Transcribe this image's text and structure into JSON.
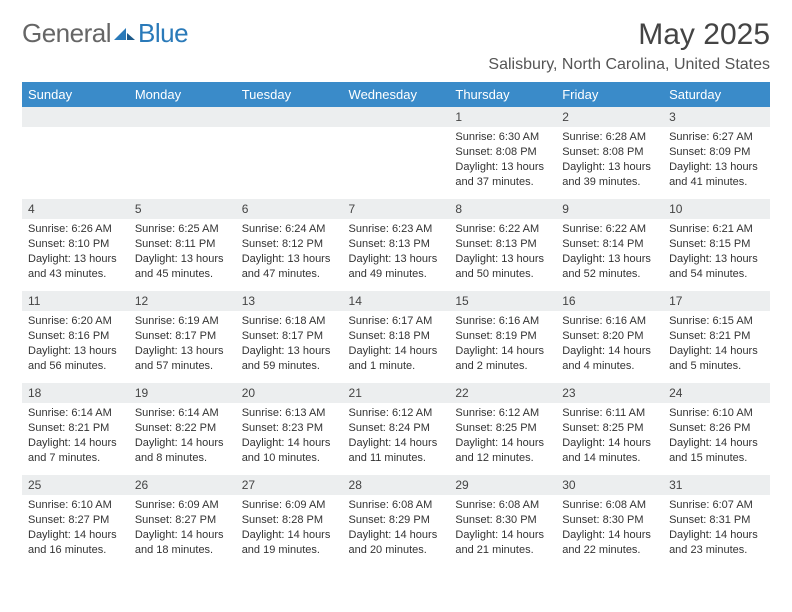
{
  "logo": {
    "text_gray": "General",
    "text_blue": "Blue"
  },
  "title": "May 2025",
  "location": "Salisbury, North Carolina, United States",
  "colors": {
    "header_bg": "#3a8bc9",
    "header_text": "#ffffff",
    "daynum_bg": "#eceeef",
    "body_text": "#333333",
    "logo_gray": "#666666",
    "logo_blue": "#2a7ab9"
  },
  "day_headers": [
    "Sunday",
    "Monday",
    "Tuesday",
    "Wednesday",
    "Thursday",
    "Friday",
    "Saturday"
  ],
  "first_weekday_index": 4,
  "days": [
    {
      "n": 1,
      "sunrise": "6:30 AM",
      "sunset": "8:08 PM",
      "daylight": "13 hours and 37 minutes."
    },
    {
      "n": 2,
      "sunrise": "6:28 AM",
      "sunset": "8:08 PM",
      "daylight": "13 hours and 39 minutes."
    },
    {
      "n": 3,
      "sunrise": "6:27 AM",
      "sunset": "8:09 PM",
      "daylight": "13 hours and 41 minutes."
    },
    {
      "n": 4,
      "sunrise": "6:26 AM",
      "sunset": "8:10 PM",
      "daylight": "13 hours and 43 minutes."
    },
    {
      "n": 5,
      "sunrise": "6:25 AM",
      "sunset": "8:11 PM",
      "daylight": "13 hours and 45 minutes."
    },
    {
      "n": 6,
      "sunrise": "6:24 AM",
      "sunset": "8:12 PM",
      "daylight": "13 hours and 47 minutes."
    },
    {
      "n": 7,
      "sunrise": "6:23 AM",
      "sunset": "8:13 PM",
      "daylight": "13 hours and 49 minutes."
    },
    {
      "n": 8,
      "sunrise": "6:22 AM",
      "sunset": "8:13 PM",
      "daylight": "13 hours and 50 minutes."
    },
    {
      "n": 9,
      "sunrise": "6:22 AM",
      "sunset": "8:14 PM",
      "daylight": "13 hours and 52 minutes."
    },
    {
      "n": 10,
      "sunrise": "6:21 AM",
      "sunset": "8:15 PM",
      "daylight": "13 hours and 54 minutes."
    },
    {
      "n": 11,
      "sunrise": "6:20 AM",
      "sunset": "8:16 PM",
      "daylight": "13 hours and 56 minutes."
    },
    {
      "n": 12,
      "sunrise": "6:19 AM",
      "sunset": "8:17 PM",
      "daylight": "13 hours and 57 minutes."
    },
    {
      "n": 13,
      "sunrise": "6:18 AM",
      "sunset": "8:17 PM",
      "daylight": "13 hours and 59 minutes."
    },
    {
      "n": 14,
      "sunrise": "6:17 AM",
      "sunset": "8:18 PM",
      "daylight": "14 hours and 1 minute."
    },
    {
      "n": 15,
      "sunrise": "6:16 AM",
      "sunset": "8:19 PM",
      "daylight": "14 hours and 2 minutes."
    },
    {
      "n": 16,
      "sunrise": "6:16 AM",
      "sunset": "8:20 PM",
      "daylight": "14 hours and 4 minutes."
    },
    {
      "n": 17,
      "sunrise": "6:15 AM",
      "sunset": "8:21 PM",
      "daylight": "14 hours and 5 minutes."
    },
    {
      "n": 18,
      "sunrise": "6:14 AM",
      "sunset": "8:21 PM",
      "daylight": "14 hours and 7 minutes."
    },
    {
      "n": 19,
      "sunrise": "6:14 AM",
      "sunset": "8:22 PM",
      "daylight": "14 hours and 8 minutes."
    },
    {
      "n": 20,
      "sunrise": "6:13 AM",
      "sunset": "8:23 PM",
      "daylight": "14 hours and 10 minutes."
    },
    {
      "n": 21,
      "sunrise": "6:12 AM",
      "sunset": "8:24 PM",
      "daylight": "14 hours and 11 minutes."
    },
    {
      "n": 22,
      "sunrise": "6:12 AM",
      "sunset": "8:25 PM",
      "daylight": "14 hours and 12 minutes."
    },
    {
      "n": 23,
      "sunrise": "6:11 AM",
      "sunset": "8:25 PM",
      "daylight": "14 hours and 14 minutes."
    },
    {
      "n": 24,
      "sunrise": "6:10 AM",
      "sunset": "8:26 PM",
      "daylight": "14 hours and 15 minutes."
    },
    {
      "n": 25,
      "sunrise": "6:10 AM",
      "sunset": "8:27 PM",
      "daylight": "14 hours and 16 minutes."
    },
    {
      "n": 26,
      "sunrise": "6:09 AM",
      "sunset": "8:27 PM",
      "daylight": "14 hours and 18 minutes."
    },
    {
      "n": 27,
      "sunrise": "6:09 AM",
      "sunset": "8:28 PM",
      "daylight": "14 hours and 19 minutes."
    },
    {
      "n": 28,
      "sunrise": "6:08 AM",
      "sunset": "8:29 PM",
      "daylight": "14 hours and 20 minutes."
    },
    {
      "n": 29,
      "sunrise": "6:08 AM",
      "sunset": "8:30 PM",
      "daylight": "14 hours and 21 minutes."
    },
    {
      "n": 30,
      "sunrise": "6:08 AM",
      "sunset": "8:30 PM",
      "daylight": "14 hours and 22 minutes."
    },
    {
      "n": 31,
      "sunrise": "6:07 AM",
      "sunset": "8:31 PM",
      "daylight": "14 hours and 23 minutes."
    }
  ],
  "labels": {
    "sunrise": "Sunrise: ",
    "sunset": "Sunset: ",
    "daylight": "Daylight: "
  }
}
